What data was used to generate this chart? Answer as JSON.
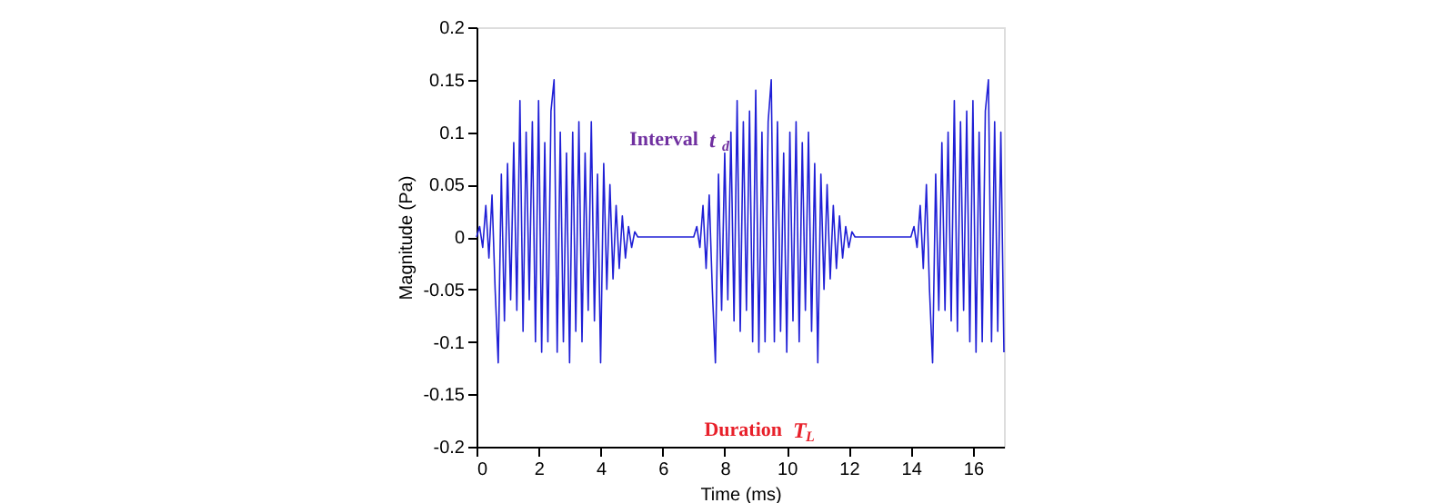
{
  "chart_data": {
    "type": "line",
    "xlabel": "Time (ms)",
    "ylabel": "Magnitude (Pa)",
    "xlim": [
      0,
      17
    ],
    "ylim": [
      -0.2,
      0.2
    ],
    "xticks": [
      0,
      2,
      4,
      6,
      8,
      10,
      12,
      14,
      16
    ],
    "yticks": [
      -0.2,
      -0.15,
      -0.1,
      -0.05,
      0,
      0.05,
      0.1,
      0.15,
      0.2
    ],
    "grid": false,
    "marker": "none",
    "line_style": "solid",
    "series": [
      {
        "color": "#1f1fd6",
        "x": [
          0,
          0.1,
          0.2,
          0.3,
          0.4,
          0.5,
          0.6,
          0.7,
          0.8,
          0.9,
          1.0,
          1.1,
          1.2,
          1.3,
          1.4,
          1.5,
          1.6,
          1.7,
          1.8,
          1.9,
          2.0,
          2.1,
          2.2,
          2.3,
          2.4,
          2.5,
          2.6,
          2.7,
          2.8,
          2.9,
          3.0,
          3.1,
          3.2,
          3.3,
          3.4,
          3.5,
          3.6,
          3.7,
          3.8,
          3.9,
          4.0,
          4.1,
          4.2,
          4.3,
          4.4,
          4.5,
          4.6,
          4.7,
          4.8,
          4.9,
          5.0,
          5.1,
          5.2,
          7.0,
          7.1,
          7.2,
          7.3,
          7.4,
          7.5,
          7.6,
          7.7,
          7.8,
          7.9,
          8.0,
          8.1,
          8.2,
          8.3,
          8.4,
          8.5,
          8.6,
          8.7,
          8.8,
          8.9,
          9.0,
          9.1,
          9.2,
          9.3,
          9.4,
          9.5,
          9.6,
          9.7,
          9.8,
          9.9,
          10.0,
          10.1,
          10.2,
          10.3,
          10.4,
          10.5,
          10.6,
          10.7,
          10.8,
          10.9,
          11.0,
          11.1,
          11.2,
          11.3,
          11.4,
          11.5,
          11.6,
          11.7,
          11.8,
          11.9,
          12.0,
          12.1,
          12.2,
          14.0,
          14.1,
          14.2,
          14.3,
          14.4,
          14.5,
          14.6,
          14.7,
          14.8,
          14.9,
          15.0,
          15.1,
          15.2,
          15.3,
          15.4,
          15.5,
          15.6,
          15.7,
          15.8,
          15.9,
          16.0,
          16.1,
          16.2,
          16.3,
          16.4,
          16.5,
          16.6,
          16.7,
          16.8,
          16.9,
          17.0
        ],
        "values": [
          0,
          0.01,
          -0.01,
          0.03,
          -0.02,
          0.04,
          -0.05,
          -0.12,
          0.06,
          -0.08,
          0.07,
          -0.06,
          0.09,
          -0.07,
          0.13,
          -0.09,
          0.1,
          -0.06,
          0.11,
          -0.1,
          0.13,
          -0.11,
          0.09,
          -0.1,
          0.12,
          0.15,
          -0.11,
          0.1,
          -0.1,
          0.08,
          -0.12,
          0.1,
          -0.09,
          0.11,
          -0.1,
          0.08,
          -0.07,
          0.11,
          -0.08,
          0.06,
          -0.12,
          0.07,
          -0.05,
          0.05,
          -0.04,
          0.03,
          -0.03,
          0.02,
          -0.02,
          0.01,
          -0.01,
          0.005,
          0,
          0,
          0.01,
          -0.01,
          0.03,
          -0.03,
          0.04,
          -0.05,
          -0.12,
          0.06,
          -0.07,
          0.08,
          -0.06,
          0.1,
          -0.08,
          0.13,
          -0.09,
          0.11,
          -0.07,
          0.12,
          -0.1,
          0.14,
          -0.11,
          0.1,
          -0.1,
          0.11,
          0.15,
          -0.1,
          0.11,
          -0.09,
          0.08,
          -0.11,
          0.1,
          -0.08,
          0.11,
          -0.1,
          0.09,
          -0.07,
          0.1,
          -0.09,
          0.07,
          -0.12,
          0.06,
          -0.05,
          0.05,
          -0.04,
          0.03,
          -0.03,
          0.02,
          -0.02,
          0.01,
          -0.01,
          0.005,
          0,
          0,
          0.01,
          -0.01,
          0.03,
          -0.03,
          0.05,
          -0.05,
          -0.12,
          0.06,
          -0.07,
          0.09,
          -0.07,
          0.1,
          -0.08,
          0.13,
          -0.09,
          0.11,
          -0.07,
          0.12,
          -0.1,
          0.13,
          -0.11,
          0.1,
          -0.1,
          0.12,
          0.15,
          -0.1,
          0.11,
          -0.09,
          0.1,
          -0.11
        ]
      }
    ],
    "annotations": [
      "Interval t$_{d}$",
      "Duration T$_{L}$"
    ]
  }
}
